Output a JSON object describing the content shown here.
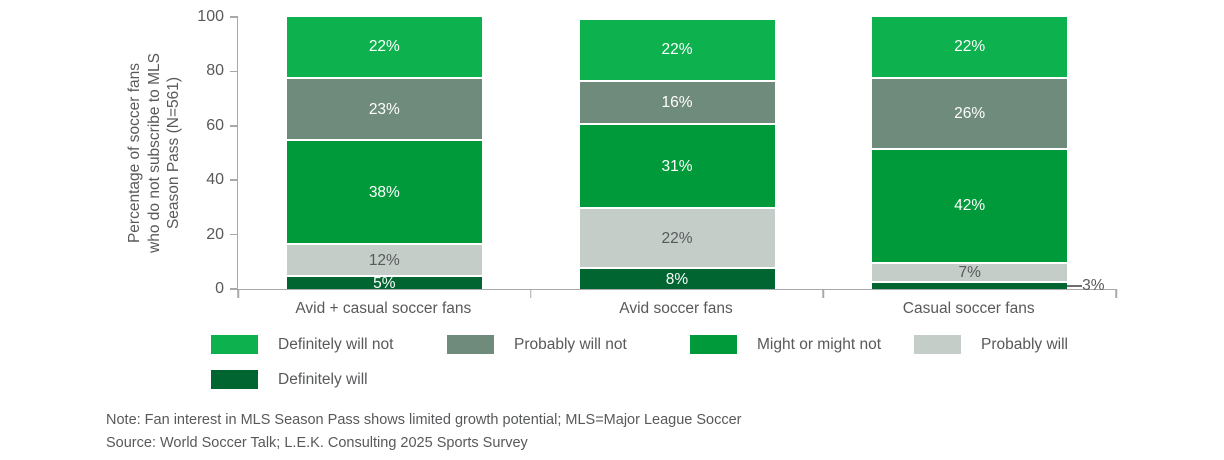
{
  "chart_data": {
    "type": "bar",
    "stacked": true,
    "unit": "%",
    "categories": [
      "Avid + casual soccer fans",
      "Avid soccer fans",
      "Casual soccer fans"
    ],
    "series": [
      {
        "name": "Definitely will not",
        "color": "#0db14e",
        "label_color": "#ffffff",
        "values": [
          22,
          22,
          22
        ]
      },
      {
        "name": "Probably will not",
        "color": "#6f8b7b",
        "label_color": "#ffffff",
        "values": [
          23,
          16,
          26
        ]
      },
      {
        "name": "Might or might not",
        "color": "#009a3a",
        "label_color": "#ffffff",
        "values": [
          38,
          31,
          42
        ]
      },
      {
        "name": "Probably will",
        "color": "#c4cdc8",
        "label_color": "#58595b",
        "values": [
          12,
          22,
          7
        ]
      },
      {
        "name": "Definitely will",
        "color": "#006530",
        "label_color": "#ffffff",
        "values": [
          5,
          8,
          3
        ],
        "label_outside": [
          false,
          false,
          true
        ]
      }
    ],
    "ylabel": "Percentage of soccer fans\nwho do not subscribe to MLS\nSeason Pass (N=561)",
    "yticks": [
      0,
      20,
      40,
      60,
      80,
      100
    ],
    "ylim": [
      0,
      100
    ],
    "grid": false,
    "legend_position": "bottom",
    "bar_value_label_suffix": "%"
  },
  "legend": {
    "items": [
      {
        "label": "Definitely will not",
        "color": "#0db14e"
      },
      {
        "label": "Probably will not",
        "color": "#6f8b7b"
      },
      {
        "label": "Might or might not",
        "color": "#009a3a"
      },
      {
        "label": "Probably will",
        "color": "#c4cdc8"
      },
      {
        "label": "Definitely will",
        "color": "#006530"
      }
    ]
  },
  "notes": {
    "note": "Note: Fan interest in MLS Season Pass shows limited growth potential; MLS=Major League Soccer",
    "source": "Source: World Soccer Talk; L.E.K. Consulting 2025 Sports Survey"
  },
  "colors": {
    "axis": "#a7a9ac",
    "text": "#58595b",
    "separator": "#ffffff"
  }
}
